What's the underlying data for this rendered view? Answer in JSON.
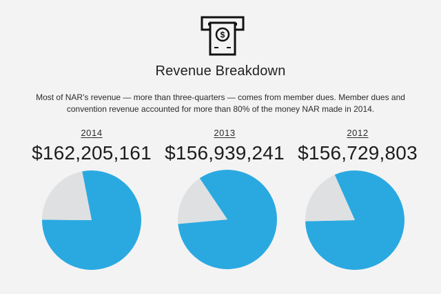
{
  "title": "Revenue Breakdown",
  "subtitle": "Most of NAR's revenue — more than three-quarters — comes from member dues. Member dues and convention revenue accounted for more than 80% of the money NAR made in 2014.",
  "icon": "cash-dispenser-icon",
  "colors": {
    "background": "#f3f3f4",
    "accent": "#2aa9e0",
    "remainder": "#dfe0e2",
    "text": "#1f1f1f"
  },
  "chart_data": [
    {
      "type": "pie",
      "title": "2014",
      "total_label": "$162,205,161",
      "slices": [
        {
          "label": "",
          "value": 78.2,
          "color": "#2aa9e0"
        },
        {
          "label": "",
          "value": 21.8,
          "color": "#dfe0e2"
        }
      ]
    },
    {
      "type": "pie",
      "title": "2013",
      "total_label": "$156,939,241",
      "slices": [
        {
          "label": "",
          "value": 83.0,
          "color": "#2aa9e0"
        },
        {
          "label": "",
          "value": 17.0,
          "color": "#dfe0e2"
        }
      ]
    },
    {
      "type": "pie",
      "title": "2012",
      "total_label": "$156,729,803",
      "slices": [
        {
          "label": "",
          "value": 81.3,
          "color": "#2aa9e0"
        },
        {
          "label": "",
          "value": 18.7,
          "color": "#dfe0e2"
        }
      ]
    }
  ]
}
